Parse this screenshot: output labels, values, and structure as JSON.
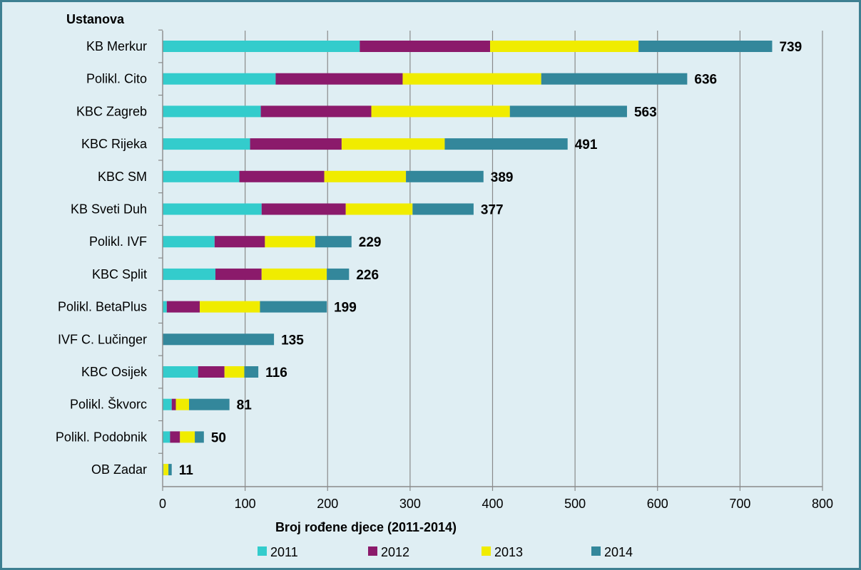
{
  "chart_data": {
    "type": "bar",
    "orientation": "horizontal",
    "stacked": true,
    "ylabel": "Ustanova",
    "xlabel": "Broj rođene djece (2011-2014)",
    "xlim": [
      0,
      800
    ],
    "xticks": [
      0,
      100,
      200,
      300,
      400,
      500,
      600,
      700,
      800
    ],
    "grid": "vertical",
    "legend_position": "bottom",
    "categories": [
      "KB Merkur",
      "Polikl. Cito",
      "KBC Zagreb",
      "KBC Rijeka",
      "KBC SM",
      "KB Sveti Duh",
      "Polikl. IVF",
      "KBC Split",
      "Polikl. BetaPlus",
      "IVF C. Lučinger",
      "KBC Osijek",
      "Polikl. Škvorc",
      "Polikl. Podobnik",
      "OB Zadar"
    ],
    "series": [
      {
        "name": "2011",
        "color": "#33cccc",
        "values": [
          239,
          137,
          119,
          106,
          93,
          120,
          63,
          64,
          5,
          0,
          43,
          11,
          9,
          1
        ]
      },
      {
        "name": "2012",
        "color": "#8b1a6b",
        "values": [
          158,
          154,
          134,
          111,
          103,
          102,
          61,
          56,
          40,
          0,
          32,
          5,
          12,
          0
        ]
      },
      {
        "name": "2013",
        "color": "#f0ec00",
        "values": [
          180,
          168,
          168,
          125,
          99,
          81,
          61,
          79,
          73,
          0,
          24,
          16,
          18,
          6
        ]
      },
      {
        "name": "2014",
        "color": "#33879b",
        "values": [
          162,
          177,
          142,
          149,
          94,
          74,
          44,
          27,
          81,
          135,
          17,
          49,
          11,
          4
        ]
      }
    ],
    "totals": [
      "739",
      "636",
      "563",
      "491",
      "389",
      "377",
      "229",
      "226",
      "199",
      "135",
      "116",
      "81",
      "50",
      "11"
    ]
  }
}
